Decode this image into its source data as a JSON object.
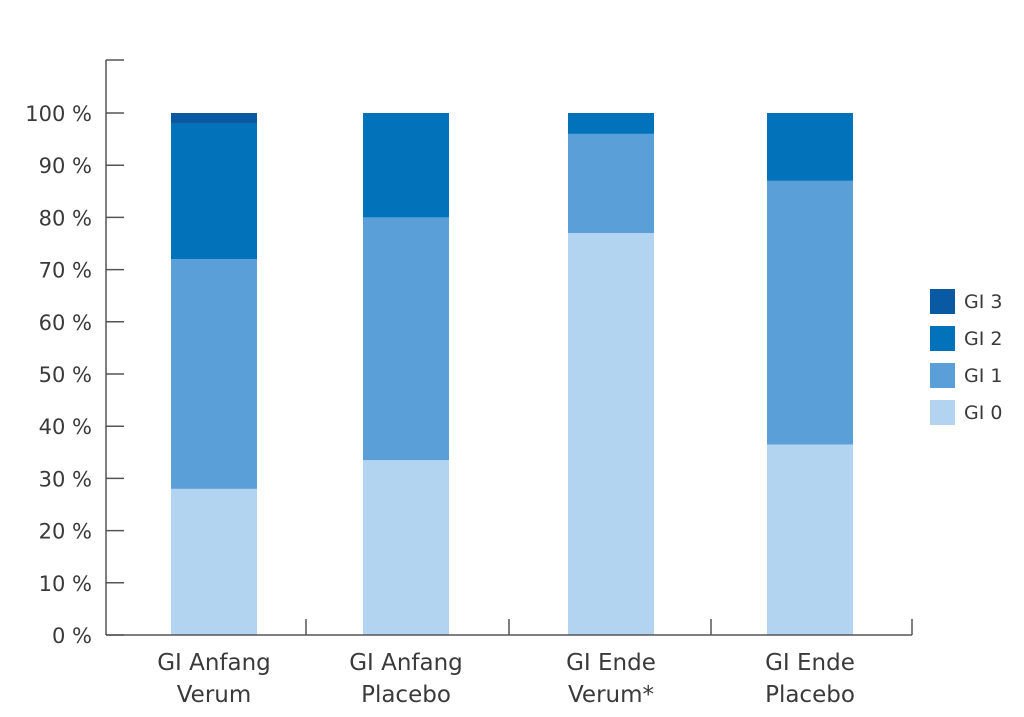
{
  "chart_data": {
    "type": "bar",
    "stacked": true,
    "title": "",
    "xlabel": "",
    "ylabel": "",
    "ylim": [
      0,
      100
    ],
    "y_ticks": [
      "0 %",
      "10 %",
      "20 %",
      "30 %",
      "40 %",
      "50 %",
      "60 %",
      "70 %",
      "80 %",
      "90 %",
      "100 %"
    ],
    "categories": [
      [
        "GI Anfang",
        "Verum"
      ],
      [
        "GI Anfang",
        "Placebo"
      ],
      [
        "GI Ende",
        "Verum*"
      ],
      [
        "GI Ende",
        "Placebo"
      ]
    ],
    "series": [
      {
        "name": "GI 0",
        "color": "#b3d4f0",
        "values": [
          28,
          33.5,
          77,
          36.5
        ]
      },
      {
        "name": "GI 1",
        "color": "#5b9fd8",
        "values": [
          44,
          46.5,
          19,
          50.5
        ]
      },
      {
        "name": "GI 2",
        "color": "#0272bb",
        "values": [
          26,
          20,
          4,
          13
        ]
      },
      {
        "name": "GI 3",
        "color": "#0a5aa3",
        "values": [
          2,
          0,
          0,
          0
        ]
      }
    ],
    "legend": {
      "position": "right",
      "order": [
        "GI 3",
        "GI 2",
        "GI 1",
        "GI 0"
      ]
    },
    "grid": false
  }
}
